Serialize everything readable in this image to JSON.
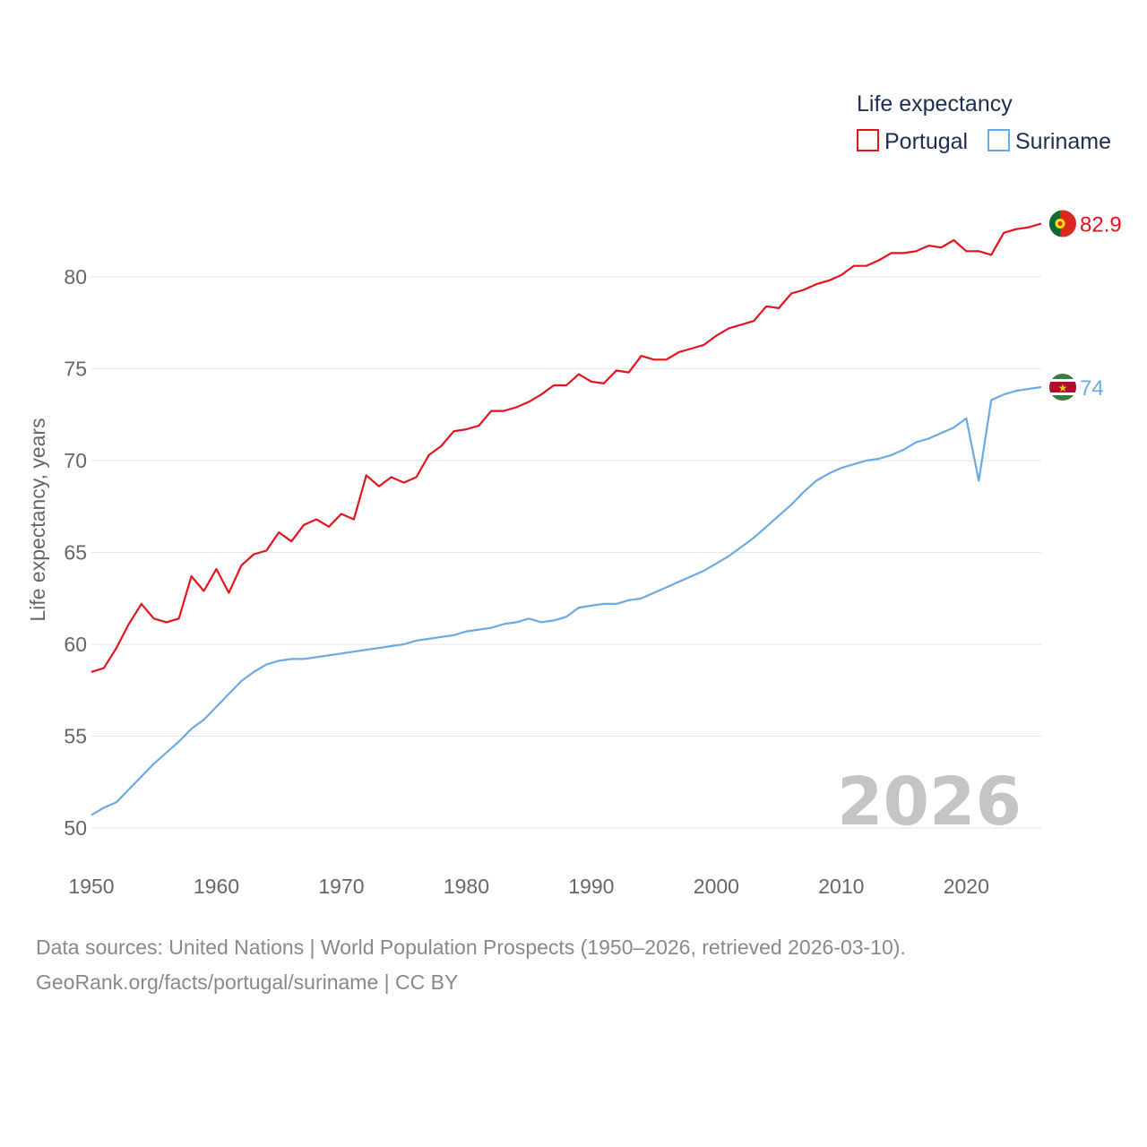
{
  "chart_data": {
    "type": "line",
    "title": "",
    "xlabel": "",
    "ylabel": "Life expectancy, years",
    "xlim": [
      1950,
      2026
    ],
    "ylim": [
      50,
      83.5
    ],
    "x_ticks": [
      "1950",
      "1960",
      "1970",
      "1980",
      "1990",
      "2000",
      "2010",
      "2020"
    ],
    "y_ticks": [
      "50",
      "55",
      "60",
      "65",
      "70",
      "75",
      "80"
    ],
    "grid": true,
    "legend": {
      "title": "Life expectancy",
      "placement": "top-right",
      "entries": [
        "Portugal",
        "Suriname"
      ]
    },
    "watermark_year": "2026",
    "x": [
      1950,
      1951,
      1952,
      1953,
      1954,
      1955,
      1956,
      1957,
      1958,
      1959,
      1960,
      1961,
      1962,
      1963,
      1964,
      1965,
      1966,
      1967,
      1968,
      1969,
      1970,
      1971,
      1972,
      1973,
      1974,
      1975,
      1976,
      1977,
      1978,
      1979,
      1980,
      1981,
      1982,
      1983,
      1984,
      1985,
      1986,
      1987,
      1988,
      1989,
      1990,
      1991,
      1992,
      1993,
      1994,
      1995,
      1996,
      1997,
      1998,
      1999,
      2000,
      2001,
      2002,
      2003,
      2004,
      2005,
      2006,
      2007,
      2008,
      2009,
      2010,
      2011,
      2012,
      2013,
      2014,
      2015,
      2016,
      2017,
      2018,
      2019,
      2020,
      2021,
      2022,
      2023,
      2024,
      2025,
      2026
    ],
    "series": [
      {
        "name": "Portugal",
        "color": "#e3121d",
        "end_label": "82.9",
        "flag": "portugal-flag-icon",
        "values": [
          58.5,
          58.7,
          59.8,
          61.1,
          62.2,
          61.4,
          61.2,
          61.4,
          63.7,
          62.9,
          64.1,
          62.8,
          64.3,
          64.9,
          65.1,
          66.1,
          65.6,
          66.5,
          66.8,
          66.4,
          67.1,
          66.8,
          69.2,
          68.6,
          69.1,
          68.8,
          69.1,
          70.3,
          70.8,
          71.6,
          71.7,
          71.9,
          72.7,
          72.7,
          72.9,
          73.2,
          73.6,
          74.1,
          74.1,
          74.7,
          74.3,
          74.2,
          74.9,
          74.8,
          75.7,
          75.5,
          75.5,
          75.9,
          76.1,
          76.3,
          76.8,
          77.2,
          77.4,
          77.6,
          78.4,
          78.3,
          79.1,
          79.3,
          79.6,
          79.8,
          80.1,
          80.6,
          80.6,
          80.9,
          81.3,
          81.3,
          81.4,
          81.7,
          81.6,
          82.0,
          81.4,
          81.4,
          81.2,
          82.4,
          82.6,
          82.7,
          82.9
        ]
      },
      {
        "name": "Suriname",
        "color": "#6aaae4",
        "end_label": "74",
        "flag": "suriname-flag-icon",
        "values": [
          50.7,
          51.1,
          51.4,
          52.1,
          52.8,
          53.5,
          54.1,
          54.7,
          55.4,
          55.9,
          56.6,
          57.3,
          58.0,
          58.5,
          58.9,
          59.1,
          59.2,
          59.2,
          59.3,
          59.4,
          59.5,
          59.6,
          59.7,
          59.8,
          59.9,
          60.0,
          60.2,
          60.3,
          60.4,
          60.5,
          60.7,
          60.8,
          60.9,
          61.1,
          61.2,
          61.4,
          61.2,
          61.3,
          61.5,
          62.0,
          62.1,
          62.2,
          62.2,
          62.4,
          62.5,
          62.8,
          63.1,
          63.4,
          63.7,
          64.0,
          64.4,
          64.8,
          65.3,
          65.8,
          66.4,
          67.0,
          67.6,
          68.3,
          68.9,
          69.3,
          69.6,
          69.8,
          70.0,
          70.1,
          70.3,
          70.6,
          71.0,
          71.2,
          71.5,
          71.8,
          72.3,
          68.9,
          73.3,
          73.6,
          73.8,
          73.9,
          74.0
        ]
      }
    ]
  },
  "footer": {
    "sources": "Data sources: United Nations | World Population Prospects (1950–2026, retrieved 2026-03-10).",
    "credit": "GeoRank.org/facts/portugal/suriname | CC BY"
  }
}
